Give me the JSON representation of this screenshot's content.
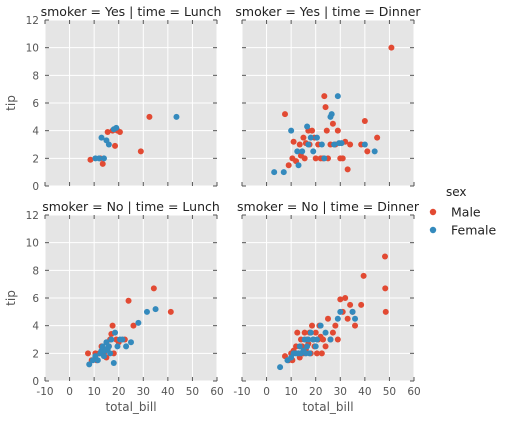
{
  "chart_data": {
    "type": "scatter",
    "facets": "2x2",
    "sharex": true,
    "sharey": true,
    "xlim": [
      -10,
      60
    ],
    "ylim": [
      0,
      12
    ],
    "xticks": [
      -10,
      0,
      10,
      20,
      30,
      40,
      50,
      60
    ],
    "yticks": [
      0,
      2,
      4,
      6,
      8,
      10,
      12
    ],
    "xlabel": "total_bill",
    "ylabel": "tip",
    "background": "#e5e5e5",
    "grid": true,
    "legend": {
      "title": "sex",
      "placement": "right",
      "entries": [
        {
          "name": "Male",
          "color": "#e24a33"
        },
        {
          "name": "Female",
          "color": "#348abd"
        }
      ]
    },
    "panels": [
      {
        "title": "smoker = Yes | time = Lunch",
        "series": [
          {
            "name": "Male",
            "color": "#e24a33",
            "points": [
              [
                8.5,
                1.9
              ],
              [
                12.5,
                2.0
              ],
              [
                13.5,
                1.6
              ],
              [
                15.5,
                3.9
              ],
              [
                17.5,
                4.0
              ],
              [
                18.5,
                2.9
              ],
              [
                19.5,
                4.0
              ],
              [
                20.5,
                3.9
              ],
              [
                29,
                2.5
              ],
              [
                32.5,
                5.0
              ]
            ]
          },
          {
            "name": "Female",
            "color": "#348abd",
            "points": [
              [
                10.5,
                2.0
              ],
              [
                12.0,
                2.0
              ],
              [
                13.0,
                3.5
              ],
              [
                14.0,
                2.0
              ],
              [
                15.0,
                3.3
              ],
              [
                16.0,
                3.0
              ],
              [
                18.0,
                4.1
              ],
              [
                19.0,
                4.2
              ],
              [
                43.5,
                5.0
              ]
            ]
          }
        ]
      },
      {
        "title": "smoker = Yes | time = Dinner",
        "series": [
          {
            "name": "Male",
            "color": "#e24a33",
            "points": [
              [
                7.5,
                5.2
              ],
              [
                9,
                1.5
              ],
              [
                10.5,
                2.0
              ],
              [
                11,
                3.2
              ],
              [
                12,
                1.8
              ],
              [
                13.5,
                3.0
              ],
              [
                14,
                2.2
              ],
              [
                15,
                3.5
              ],
              [
                15.5,
                2.0
              ],
              [
                16,
                3.1
              ],
              [
                17,
                4.0
              ],
              [
                17.5,
                3.0
              ],
              [
                18.5,
                4.0
              ],
              [
                19.5,
                3.5
              ],
              [
                20,
                2.0
              ],
              [
                21,
                3.0
              ],
              [
                22,
                2.0
              ],
              [
                23,
                2.0
              ],
              [
                23.5,
                6.5
              ],
              [
                24,
                5.7
              ],
              [
                24.5,
                4.0
              ],
              [
                25,
                2.0
              ],
              [
                26,
                3.0
              ],
              [
                27,
                4.5
              ],
              [
                28,
                3.0
              ],
              [
                29,
                4.0
              ],
              [
                30,
                2.0
              ],
              [
                31,
                2.0
              ],
              [
                32,
                3.2
              ],
              [
                33,
                1.2
              ],
              [
                34,
                3.0
              ],
              [
                38.5,
                3.0
              ],
              [
                40,
                4.7
              ],
              [
                41,
                2.5
              ],
              [
                45,
                3.5
              ],
              [
                50.8,
                10.0
              ]
            ]
          },
          {
            "name": "Female",
            "color": "#348abd",
            "points": [
              [
                3.1,
                1.0
              ],
              [
                7,
                1.0
              ],
              [
                10,
                4.0
              ],
              [
                12.5,
                2.5
              ],
              [
                13,
                1.5
              ],
              [
                14.5,
                2.5
              ],
              [
                16.5,
                4.3
              ],
              [
                17,
                3.0
              ],
              [
                18,
                3.5
              ],
              [
                19,
                2.5
              ],
              [
                20.5,
                3.5
              ],
              [
                22.5,
                3.0
              ],
              [
                23.5,
                2.0
              ],
              [
                26,
                5.0
              ],
              [
                26.5,
                5.2
              ],
              [
                27.5,
                3.0
              ],
              [
                29,
                6.5
              ],
              [
                29.5,
                3.1
              ],
              [
                30.5,
                3.1
              ],
              [
                40,
                3.0
              ],
              [
                44,
                2.5
              ]
            ]
          }
        ]
      },
      {
        "title": "smoker = No | time = Lunch",
        "series": [
          {
            "name": "Male",
            "color": "#e24a33",
            "points": [
              [
                7.5,
                2.0
              ],
              [
                9,
                1.5
              ],
              [
                10.5,
                2.0
              ],
              [
                11,
                1.5
              ],
              [
                12,
                2.0
              ],
              [
                13,
                2.5
              ],
              [
                14,
                2.0
              ],
              [
                15,
                1.7
              ],
              [
                16,
                2.5
              ],
              [
                16.5,
                3.0
              ],
              [
                17,
                3.4
              ],
              [
                17.5,
                4.0
              ],
              [
                18,
                2.0
              ],
              [
                19,
                3.0
              ],
              [
                20,
                2.8
              ],
              [
                22.5,
                3.0
              ],
              [
                24,
                5.8
              ],
              [
                26,
                4.0
              ],
              [
                34.3,
                6.7
              ],
              [
                41.2,
                5.0
              ]
            ]
          },
          {
            "name": "Female",
            "color": "#348abd",
            "points": [
              [
                8,
                1.2
              ],
              [
                9.5,
                1.5
              ],
              [
                10.5,
                1.8
              ],
              [
                11.5,
                1.5
              ],
              [
                12.5,
                2.0
              ],
              [
                13,
                2.2
              ],
              [
                13.5,
                2.5
              ],
              [
                14,
                1.8
              ],
              [
                14.5,
                2.2
              ],
              [
                15,
                2.8
              ],
              [
                15.5,
                2.3
              ],
              [
                16,
                2.5
              ],
              [
                16.5,
                2.0
              ],
              [
                17,
                3.0
              ],
              [
                18,
                1.3
              ],
              [
                18.5,
                3.5
              ],
              [
                19.5,
                2.5
              ],
              [
                20.5,
                3.0
              ],
              [
                21.5,
                3.0
              ],
              [
                23,
                2.5
              ],
              [
                25,
                2.8
              ],
              [
                28,
                4.2
              ],
              [
                31.5,
                5.0
              ],
              [
                35,
                5.2
              ]
            ]
          }
        ]
      },
      {
        "title": "smoker = No | time = Dinner",
        "series": [
          {
            "name": "Male",
            "color": "#e24a33",
            "points": [
              [
                7.5,
                1.8
              ],
              [
                9,
                1.5
              ],
              [
                10,
                2.0
              ],
              [
                10.5,
                1.5
              ],
              [
                11,
                2.2
              ],
              [
                12,
                2.5
              ],
              [
                12.5,
                3.5
              ],
              [
                13,
                2.0
              ],
              [
                13.5,
                1.7
              ],
              [
                14,
                3.0
              ],
              [
                14.5,
                2.5
              ],
              [
                15,
                2.0
              ],
              [
                15.5,
                3.5
              ],
              [
                16,
                2.3
              ],
              [
                16.5,
                3.0
              ],
              [
                17,
                2.7
              ],
              [
                17.5,
                3.5
              ],
              [
                18,
                2.0
              ],
              [
                18.5,
                4.0
              ],
              [
                19,
                3.0
              ],
              [
                19.5,
                2.5
              ],
              [
                20,
                3.5
              ],
              [
                20.5,
                2.0
              ],
              [
                21,
                3.0
              ],
              [
                21.5,
                4.0
              ],
              [
                22,
                3.2
              ],
              [
                22.5,
                2.0
              ],
              [
                23,
                3.0
              ],
              [
                24,
                2.5
              ],
              [
                25,
                4.5
              ],
              [
                26,
                3.0
              ],
              [
                27,
                3.5
              ],
              [
                28,
                4.0
              ],
              [
                29,
                3.0
              ],
              [
                30,
                5.9
              ],
              [
                31,
                5.0
              ],
              [
                32,
                6.0
              ],
              [
                33,
                4.5
              ],
              [
                34,
                5.5
              ],
              [
                35,
                5.0
              ],
              [
                36,
                4.0
              ],
              [
                38.5,
                5.5
              ],
              [
                39.5,
                7.6
              ],
              [
                48.2,
                9.0
              ],
              [
                48.3,
                6.7
              ],
              [
                48.5,
                5.0
              ]
            ]
          },
          {
            "name": "Female",
            "color": "#348abd",
            "points": [
              [
                5.5,
                1.0
              ],
              [
                8.5,
                1.5
              ],
              [
                10,
                1.7
              ],
              [
                11,
                2.0
              ],
              [
                12,
                2.0
              ],
              [
                13,
                2.0
              ],
              [
                13.5,
                2.5
              ],
              [
                14,
                2.0
              ],
              [
                15,
                2.2
              ],
              [
                15.5,
                3.0
              ],
              [
                16,
                2.0
              ],
              [
                16.5,
                2.5
              ],
              [
                17,
                3.0
              ],
              [
                17.5,
                2.0
              ],
              [
                18,
                3.5
              ],
              [
                19,
                3.0
              ],
              [
                20,
                2.5
              ],
              [
                20.5,
                3.0
              ],
              [
                22,
                4.0
              ],
              [
                24,
                3.5
              ],
              [
                26,
                3.0
              ],
              [
                29,
                4.5
              ],
              [
                30,
                5.0
              ],
              [
                35,
                5.0
              ],
              [
                36,
                4.5
              ]
            ]
          }
        ]
      }
    ]
  }
}
